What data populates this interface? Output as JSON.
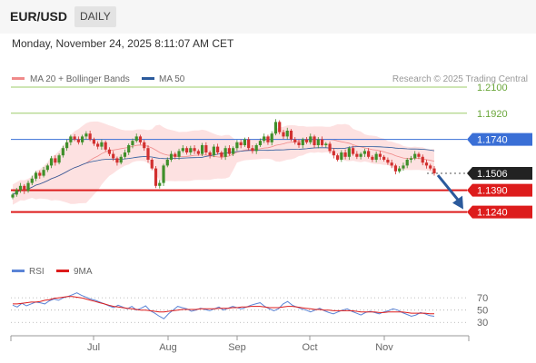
{
  "header": {
    "pair": "EUR/USD",
    "timeframe": "DAILY"
  },
  "datetime": "Monday, November 24, 2025 8:11:07 AM CET",
  "credit": "Research © 2025 Trading Central",
  "colors": {
    "bollinger": "#f08a8a",
    "bollinger_fill": "#fde1e1",
    "ma50": "#2b5a9c",
    "resistance": "#3a6fd6",
    "support": "#dd1c1c",
    "target_line": "#9ccc6a",
    "price_tag": "#222222",
    "up_candle": "#3f8f2a",
    "down_candle": "#d2302f",
    "rsi": "#5b84d6",
    "rsi_ma": "#dd1c1c",
    "arrow": "#2b5a9c"
  },
  "legend": [
    {
      "label": "MA 20 + Bollinger Bands",
      "color": "#f08a8a"
    },
    {
      "label": "MA 50",
      "color": "#2b5a9c"
    }
  ],
  "rsi_legend": [
    {
      "label": "RSI",
      "color": "#5b84d6"
    },
    {
      "label": "9MA",
      "color": "#dd1c1c"
    }
  ],
  "chart_data": {
    "type": "candlestick",
    "x_ticks": [
      "Jul",
      "Aug",
      "Sep",
      "Oct",
      "Nov"
    ],
    "price_range": [
      1.1,
      1.22
    ],
    "levels": [
      {
        "label": "1.2100",
        "value": 1.21,
        "kind": "target"
      },
      {
        "label": "1.1920",
        "value": 1.192,
        "kind": "target"
      },
      {
        "label": "1.1740",
        "value": 1.174,
        "kind": "resistance"
      },
      {
        "label": "1.1506",
        "value": 1.1506,
        "kind": "last"
      },
      {
        "label": "1.1390",
        "value": 1.139,
        "kind": "support"
      },
      {
        "label": "1.1240",
        "value": 1.124,
        "kind": "support"
      }
    ],
    "closes": [
      1.136,
      1.139,
      1.142,
      1.1385,
      1.144,
      1.147,
      1.151,
      1.149,
      1.153,
      1.156,
      1.161,
      1.158,
      1.163,
      1.168,
      1.172,
      1.176,
      1.174,
      1.172,
      1.176,
      1.178,
      1.174,
      1.171,
      1.169,
      1.172,
      1.167,
      1.164,
      1.161,
      1.158,
      1.162,
      1.165,
      1.17,
      1.173,
      1.176,
      1.172,
      1.168,
      1.16,
      1.154,
      1.142,
      1.144,
      1.156,
      1.16,
      1.164,
      1.162,
      1.166,
      1.168,
      1.165,
      1.168,
      1.166,
      1.164,
      1.17,
      1.165,
      1.163,
      1.169,
      1.165,
      1.162,
      1.168,
      1.164,
      1.168,
      1.172,
      1.17,
      1.174,
      1.168,
      1.166,
      1.17,
      1.173,
      1.176,
      1.172,
      1.178,
      1.186,
      1.179,
      1.176,
      1.18,
      1.174,
      1.172,
      1.17,
      1.174,
      1.172,
      1.176,
      1.17,
      1.174,
      1.17,
      1.171,
      1.166,
      1.163,
      1.16,
      1.165,
      1.162,
      1.168,
      1.164,
      1.162,
      1.164,
      1.166,
      1.162,
      1.16,
      1.164,
      1.162,
      1.16,
      1.158,
      1.156,
      1.152,
      1.154,
      1.156,
      1.16,
      1.161,
      1.164,
      1.162,
      1.158,
      1.156,
      1.154,
      1.1506
    ],
    "rsi_range": [
      20,
      85
    ],
    "rsi_ticks": [
      70,
      50,
      30
    ],
    "rsi": [
      58,
      55,
      61,
      57,
      60,
      63,
      62,
      60,
      65,
      68,
      66,
      70,
      72,
      75,
      78,
      74,
      71,
      68,
      66,
      63,
      60,
      57,
      54,
      58,
      55,
      52,
      56,
      50,
      53,
      57,
      49,
      45,
      40,
      36,
      44,
      50,
      56,
      54,
      52,
      48,
      50,
      53,
      51,
      49,
      52,
      55,
      50,
      53,
      56,
      54,
      52,
      55,
      58,
      60,
      62,
      56,
      52,
      49,
      52,
      60,
      64,
      58,
      55,
      52,
      50,
      47,
      50,
      53,
      49,
      46,
      44,
      47,
      50,
      52,
      48,
      45,
      42,
      46,
      48,
      46,
      44,
      47,
      49,
      52,
      50,
      46,
      43,
      40,
      42,
      46,
      44,
      41,
      40
    ],
    "rsi_ma": [
      60,
      60,
      61,
      62,
      63,
      63,
      64,
      66,
      67,
      69,
      70,
      71,
      72,
      72,
      71,
      70,
      68,
      66,
      64,
      62,
      60,
      58,
      56,
      55,
      54,
      53,
      52,
      51,
      50,
      50,
      49,
      48,
      47,
      47,
      48,
      49,
      50,
      51,
      51,
      51,
      51,
      52,
      52,
      52,
      52,
      53,
      53,
      53,
      54,
      54,
      55,
      55,
      56,
      56,
      56,
      55,
      54,
      54,
      54,
      55,
      56,
      56,
      55,
      54,
      53,
      52,
      51,
      51,
      50,
      50,
      49,
      49,
      49,
      49,
      49,
      48,
      47,
      47,
      47,
      47,
      46,
      46,
      47,
      47,
      47,
      47,
      46,
      45,
      45,
      45,
      45,
      44,
      44
    ]
  }
}
